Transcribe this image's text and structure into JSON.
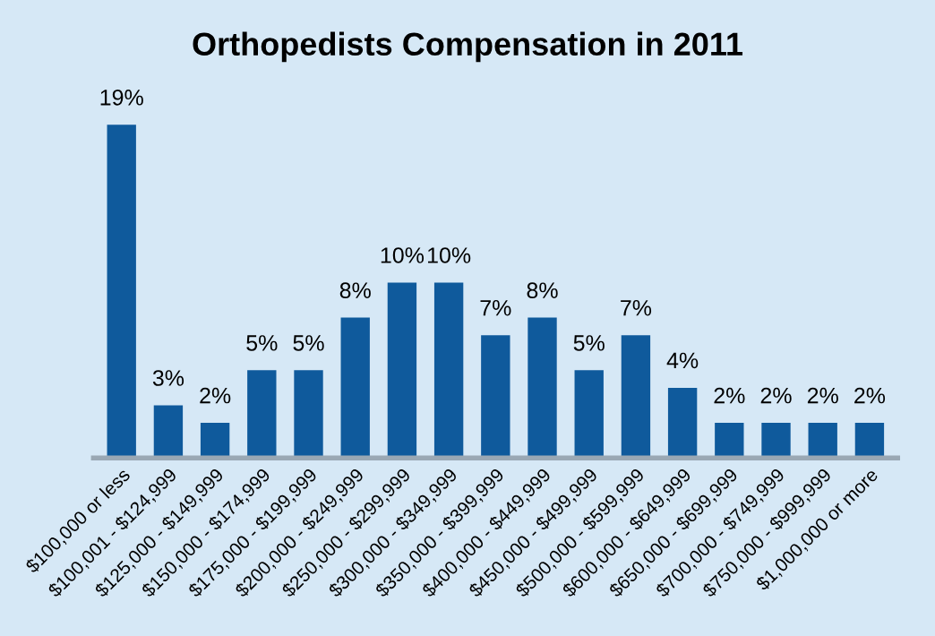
{
  "chart_data": {
    "type": "bar",
    "title": "Orthopedists Compensation in 2011",
    "categories": [
      "$100,000 or less",
      "$100,001 - $124,999",
      "$125,000 - $149,999",
      "$150,000 - $174,999",
      "$175,000 - $199,999",
      "$200,000 - $249,999",
      "$250,000 - $299,999",
      "$300,000 - $349,999",
      "$350,000 - $399,999",
      "$400,000 - $449,999",
      "$450,000 - $499,999",
      "$500,000 - $599,999",
      "$600,000 - $649,999",
      "$650,000 - $699,999",
      "$700,000 - $749,999",
      "$750,000 - $999,999",
      "$1,000,000 or more"
    ],
    "values": [
      19,
      3,
      2,
      5,
      5,
      8,
      10,
      10,
      7,
      8,
      5,
      7,
      4,
      2,
      2,
      2,
      2
    ],
    "value_labels": [
      "19%",
      "3%",
      "2%",
      "5%",
      "5%",
      "8%",
      "10%",
      "10%",
      "7%",
      "8%",
      "5%",
      "7%",
      "4%",
      "2%",
      "2%",
      "2%",
      "2%"
    ],
    "color": "#0f5a9c",
    "grid": false,
    "legend": false
  }
}
